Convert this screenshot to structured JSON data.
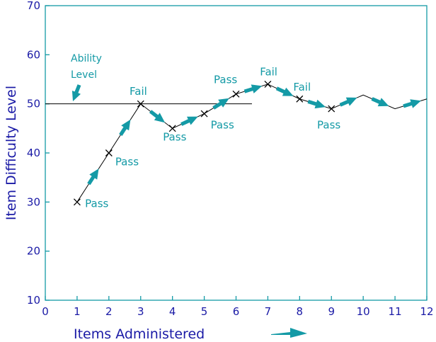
{
  "chart_data": {
    "type": "line",
    "title": "",
    "xlabel": "Items Administered",
    "ylabel": "Item Difficulty Level",
    "xlim": [
      0,
      12
    ],
    "ylim": [
      10,
      70
    ],
    "xticks": [
      "0",
      "1",
      "2",
      "3",
      "4",
      "5",
      "6",
      "7",
      "8",
      "9",
      "10",
      "11",
      "12"
    ],
    "yticks": [
      "10",
      "20",
      "30",
      "40",
      "50",
      "60",
      "70"
    ],
    "ability_level": {
      "value": 50,
      "x_range": [
        0,
        6.5
      ],
      "label_line1": "Ability",
      "label_line2": "Level"
    },
    "series": [
      {
        "values": [
          {
            "x": 1,
            "y": 30
          },
          {
            "x": 2,
            "y": 40
          },
          {
            "x": 3,
            "y": 50
          },
          {
            "x": 4,
            "y": 45
          },
          {
            "x": 5,
            "y": 48
          },
          {
            "x": 6,
            "y": 52
          },
          {
            "x": 7,
            "y": 54
          },
          {
            "x": 8,
            "y": 51
          },
          {
            "x": 9,
            "y": 49
          },
          {
            "x": 10,
            "y": 51.8
          },
          {
            "x": 11,
            "y": 49
          },
          {
            "x": 12,
            "y": 51
          }
        ],
        "marked_points": 9
      }
    ],
    "annotations": [
      {
        "text": "Pass",
        "x": 1.25,
        "y": 29
      },
      {
        "text": "Pass",
        "x": 2.2,
        "y": 37.5
      },
      {
        "text": "Fail",
        "x": 2.65,
        "y": 51.8
      },
      {
        "text": "Pass",
        "x": 3.7,
        "y": 42.5
      },
      {
        "text": "Pass",
        "x": 5.2,
        "y": 45
      },
      {
        "text": "Pass",
        "x": 5.3,
        "y": 54.2
      },
      {
        "text": "Fail",
        "x": 6.75,
        "y": 55.8
      },
      {
        "text": "Fail",
        "x": 7.8,
        "y": 52.7
      },
      {
        "text": "Pass",
        "x": 8.55,
        "y": 45
      }
    ],
    "colors": {
      "axis": "#149aa6",
      "text": "#1a1aa6",
      "line": "#000000",
      "arrow": "#149aa6"
    }
  }
}
